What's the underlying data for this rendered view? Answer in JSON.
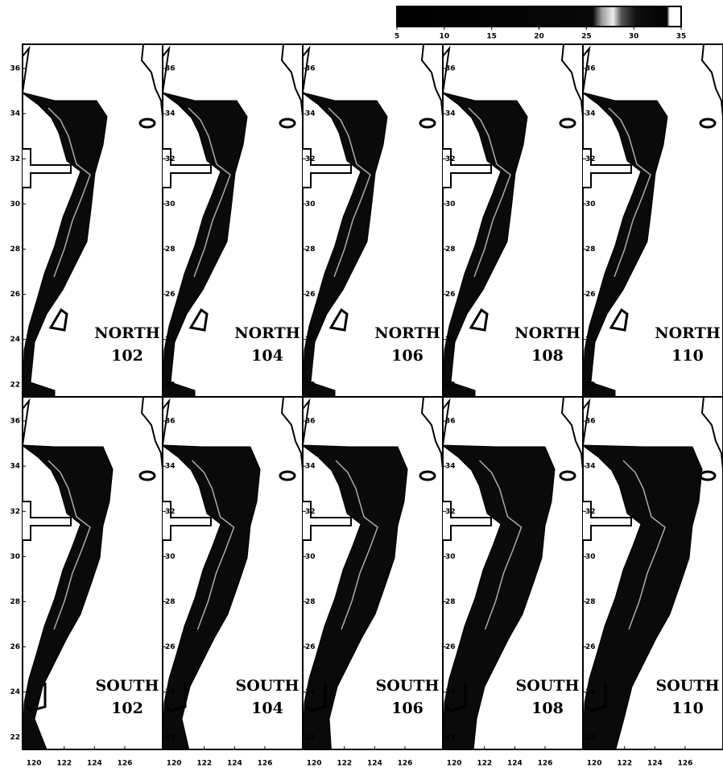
{
  "colorbar": {
    "lim": [
      5,
      35
    ],
    "ticks": [
      5,
      10,
      15,
      20,
      25,
      30,
      35
    ]
  },
  "map_axes": {
    "lonlim": [
      119.25,
      128.5
    ],
    "latlim": [
      21.46,
      37.07
    ],
    "lon_ticks": [
      120,
      122,
      124,
      126
    ],
    "lat_ticks": [
      22,
      24,
      26,
      28,
      30,
      32,
      34,
      36
    ]
  },
  "panels": [
    {
      "region": "NORTH",
      "id": "102"
    },
    {
      "region": "NORTH",
      "id": "104"
    },
    {
      "region": "NORTH",
      "id": "106"
    },
    {
      "region": "NORTH",
      "id": "108"
    },
    {
      "region": "NORTH",
      "id": "110"
    },
    {
      "region": "SOUTH",
      "id": "102"
    },
    {
      "region": "SOUTH",
      "id": "104"
    },
    {
      "region": "SOUTH",
      "id": "106"
    },
    {
      "region": "SOUTH",
      "id": "108"
    },
    {
      "region": "SOUTH",
      "id": "110"
    }
  ]
}
